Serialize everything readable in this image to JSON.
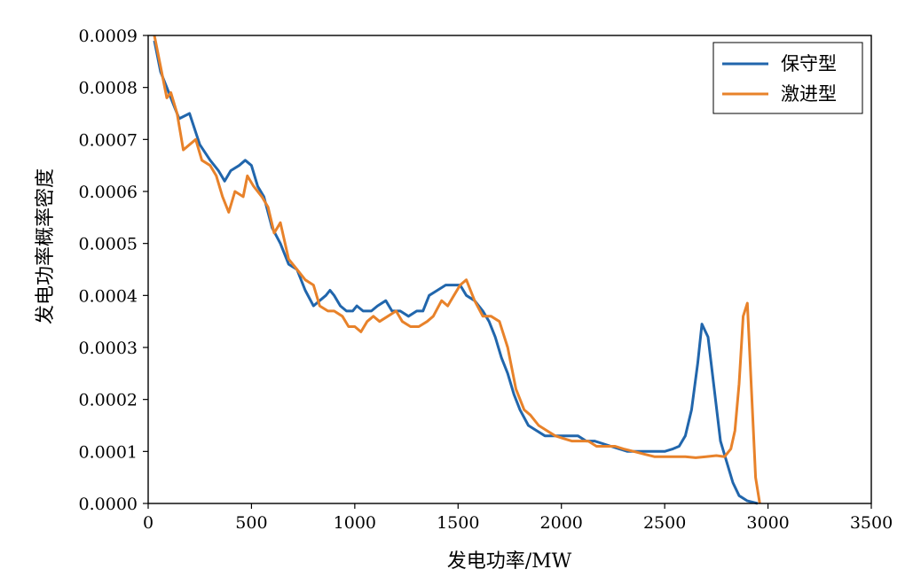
{
  "chart_data": {
    "type": "line",
    "xlabel": "发电功率/MW",
    "ylabel": "发电功率概率密度",
    "xlim": [
      0,
      3500
    ],
    "ylim": [
      0,
      0.0009
    ],
    "xticks": [
      0,
      500,
      1000,
      1500,
      2000,
      2500,
      3000,
      3500
    ],
    "xtick_labels": [
      "0",
      "500",
      "1000",
      "1500",
      "2000",
      "2500",
      "3000",
      "3500"
    ],
    "yticks": [
      0,
      0.0001,
      0.0002,
      0.0003,
      0.0004,
      0.0005,
      0.0006,
      0.0007,
      0.0008,
      0.0009
    ],
    "ytick_labels": [
      "0.0000",
      "0.0001",
      "0.0002",
      "0.0003",
      "0.0004",
      "0.0005",
      "0.0006",
      "0.0007",
      "0.0008",
      "0.0009"
    ],
    "grid": false,
    "legend_position": "top-right",
    "series": [
      {
        "name": "保守型",
        "color": "#2166ac",
        "points": [
          [
            30,
            0.00089
          ],
          [
            60,
            0.00083
          ],
          [
            90,
            0.0008
          ],
          [
            120,
            0.00077
          ],
          [
            150,
            0.00074
          ],
          [
            200,
            0.00075
          ],
          [
            250,
            0.00069
          ],
          [
            300,
            0.00066
          ],
          [
            340,
            0.00064
          ],
          [
            370,
            0.00062
          ],
          [
            400,
            0.00064
          ],
          [
            440,
            0.00065
          ],
          [
            470,
            0.00066
          ],
          [
            500,
            0.00065
          ],
          [
            530,
            0.00061
          ],
          [
            560,
            0.00059
          ],
          [
            600,
            0.00053
          ],
          [
            640,
            0.0005
          ],
          [
            680,
            0.00046
          ],
          [
            720,
            0.00045
          ],
          [
            760,
            0.00041
          ],
          [
            800,
            0.00038
          ],
          [
            830,
            0.00039
          ],
          [
            860,
            0.0004
          ],
          [
            880,
            0.00041
          ],
          [
            900,
            0.0004
          ],
          [
            930,
            0.00038
          ],
          [
            960,
            0.00037
          ],
          [
            990,
            0.00037
          ],
          [
            1010,
            0.00038
          ],
          [
            1040,
            0.00037
          ],
          [
            1080,
            0.00037
          ],
          [
            1110,
            0.00038
          ],
          [
            1150,
            0.00039
          ],
          [
            1180,
            0.00037
          ],
          [
            1220,
            0.00037
          ],
          [
            1260,
            0.00036
          ],
          [
            1300,
            0.00037
          ],
          [
            1330,
            0.00037
          ],
          [
            1360,
            0.0004
          ],
          [
            1400,
            0.00041
          ],
          [
            1440,
            0.00042
          ],
          [
            1480,
            0.00042
          ],
          [
            1510,
            0.00042
          ],
          [
            1540,
            0.0004
          ],
          [
            1580,
            0.00039
          ],
          [
            1620,
            0.00037
          ],
          [
            1650,
            0.00035
          ],
          [
            1680,
            0.00032
          ],
          [
            1710,
            0.00028
          ],
          [
            1740,
            0.00025
          ],
          [
            1770,
            0.00021
          ],
          [
            1800,
            0.00018
          ],
          [
            1840,
            0.00015
          ],
          [
            1880,
            0.00014
          ],
          [
            1920,
            0.00013
          ],
          [
            1960,
            0.00013
          ],
          [
            2000,
            0.00013
          ],
          [
            2040,
            0.00013
          ],
          [
            2080,
            0.00013
          ],
          [
            2120,
            0.00012
          ],
          [
            2160,
            0.00012
          ],
          [
            2200,
            0.000115
          ],
          [
            2240,
            0.00011
          ],
          [
            2280,
            0.000105
          ],
          [
            2320,
            0.0001
          ],
          [
            2360,
            0.0001
          ],
          [
            2400,
            0.0001
          ],
          [
            2450,
            0.0001
          ],
          [
            2500,
            0.0001
          ],
          [
            2540,
            0.000105
          ],
          [
            2570,
            0.00011
          ],
          [
            2600,
            0.00013
          ],
          [
            2630,
            0.00018
          ],
          [
            2660,
            0.00027
          ],
          [
            2680,
            0.000345
          ],
          [
            2710,
            0.00032
          ],
          [
            2740,
            0.00022
          ],
          [
            2770,
            0.00012
          ],
          [
            2800,
            8e-05
          ],
          [
            2830,
            4e-05
          ],
          [
            2860,
            1.5e-05
          ],
          [
            2900,
            5e-06
          ],
          [
            2950,
            0.0
          ]
        ]
      },
      {
        "name": "激进型",
        "color": "#e8822a",
        "points": [
          [
            30,
            0.0009
          ],
          [
            60,
            0.00084
          ],
          [
            90,
            0.00078
          ],
          [
            110,
            0.00079
          ],
          [
            140,
            0.00075
          ],
          [
            170,
            0.00068
          ],
          [
            200,
            0.00069
          ],
          [
            230,
            0.0007
          ],
          [
            260,
            0.00066
          ],
          [
            300,
            0.00065
          ],
          [
            330,
            0.00063
          ],
          [
            360,
            0.00059
          ],
          [
            390,
            0.00056
          ],
          [
            420,
            0.0006
          ],
          [
            460,
            0.00059
          ],
          [
            480,
            0.00063
          ],
          [
            510,
            0.00061
          ],
          [
            550,
            0.00059
          ],
          [
            580,
            0.00057
          ],
          [
            610,
            0.00052
          ],
          [
            640,
            0.00054
          ],
          [
            680,
            0.00047
          ],
          [
            720,
            0.00045
          ],
          [
            760,
            0.00043
          ],
          [
            800,
            0.00042
          ],
          [
            830,
            0.00038
          ],
          [
            870,
            0.00037
          ],
          [
            900,
            0.00037
          ],
          [
            940,
            0.00036
          ],
          [
            970,
            0.00034
          ],
          [
            1000,
            0.00034
          ],
          [
            1030,
            0.00033
          ],
          [
            1060,
            0.00035
          ],
          [
            1090,
            0.00036
          ],
          [
            1120,
            0.00035
          ],
          [
            1160,
            0.00036
          ],
          [
            1200,
            0.00037
          ],
          [
            1230,
            0.00035
          ],
          [
            1270,
            0.00034
          ],
          [
            1310,
            0.00034
          ],
          [
            1350,
            0.00035
          ],
          [
            1380,
            0.00036
          ],
          [
            1420,
            0.00039
          ],
          [
            1450,
            0.00038
          ],
          [
            1480,
            0.0004
          ],
          [
            1510,
            0.00042
          ],
          [
            1540,
            0.00043
          ],
          [
            1580,
            0.00039
          ],
          [
            1620,
            0.00036
          ],
          [
            1660,
            0.00036
          ],
          [
            1700,
            0.00035
          ],
          [
            1740,
            0.0003
          ],
          [
            1780,
            0.00022
          ],
          [
            1820,
            0.00018
          ],
          [
            1850,
            0.00017
          ],
          [
            1890,
            0.00015
          ],
          [
            1930,
            0.00014
          ],
          [
            1970,
            0.00013
          ],
          [
            2010,
            0.000125
          ],
          [
            2050,
            0.00012
          ],
          [
            2090,
            0.00012
          ],
          [
            2130,
            0.00012
          ],
          [
            2170,
            0.00011
          ],
          [
            2210,
            0.00011
          ],
          [
            2260,
            0.00011
          ],
          [
            2300,
            0.000105
          ],
          [
            2350,
            0.0001
          ],
          [
            2400,
            9.5e-05
          ],
          [
            2450,
            9e-05
          ],
          [
            2500,
            9e-05
          ],
          [
            2550,
            9e-05
          ],
          [
            2600,
            9e-05
          ],
          [
            2650,
            8.8e-05
          ],
          [
            2700,
            9e-05
          ],
          [
            2750,
            9.2e-05
          ],
          [
            2790,
            9e-05
          ],
          [
            2820,
            0.000105
          ],
          [
            2840,
            0.00014
          ],
          [
            2860,
            0.00023
          ],
          [
            2880,
            0.00036
          ],
          [
            2900,
            0.000385
          ],
          [
            2920,
            0.00022
          ],
          [
            2940,
            5e-05
          ],
          [
            2960,
            0.0
          ]
        ]
      }
    ]
  }
}
